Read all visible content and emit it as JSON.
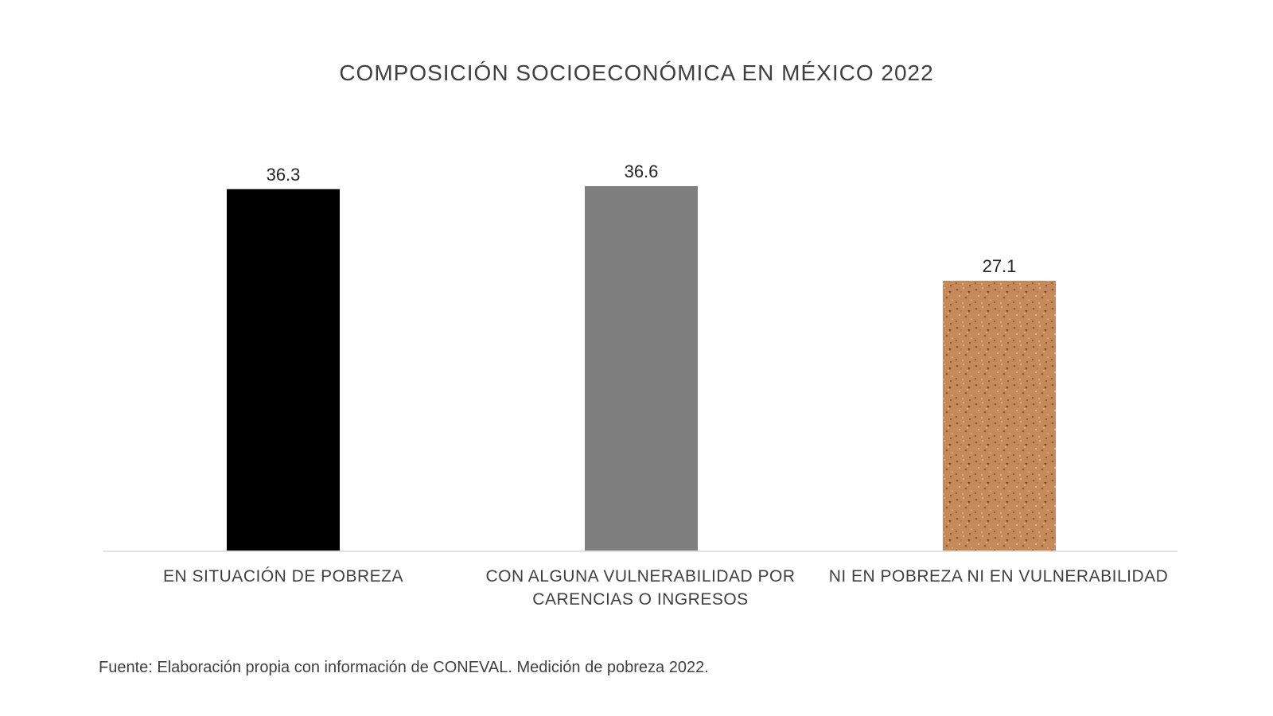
{
  "chart_data": {
    "type": "bar",
    "title": "COMPOSICIÓN SOCIOECONÓMICA EN MÉXICO 2022",
    "categories": [
      "EN SITUACIÓN DE POBREZA",
      "CON ALGUNA VULNERABILIDAD POR CARENCIAS O INGRESOS",
      "NI EN POBREZA NI EN VULNERABILIDAD"
    ],
    "values": [
      36.3,
      36.6,
      27.1
    ],
    "data_labels": [
      "36.3",
      "36.6",
      "27.1"
    ],
    "colors": [
      "#000000",
      "#7f7f7f",
      "#c48a5a"
    ],
    "fill_styles": [
      "solid",
      "solid",
      "cork-texture"
    ],
    "xlabel": "",
    "ylabel": "",
    "ylim": [
      0,
      36.6
    ],
    "grid": false,
    "legend": "none",
    "y_axis_visible": false
  },
  "source_note": "Fuente: Elaboración propia con información de CONEVAL. Medición de pobreza 2022."
}
